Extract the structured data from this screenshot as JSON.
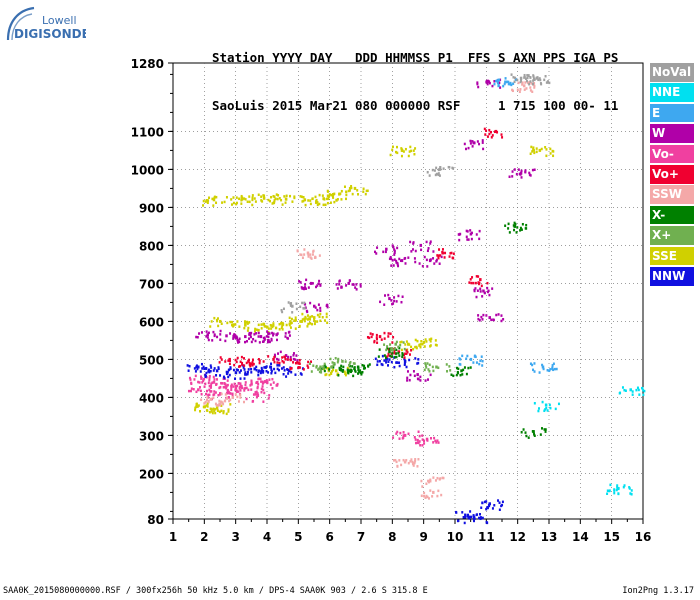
{
  "logo": {
    "line1": "Lowell",
    "line2": "DIGISONDE"
  },
  "header": {
    "line1": "Station YYYY DAY   DDD HHMMSS P1  FFS S AXN PPS IGA PS",
    "line2": "SaoLuis 2015 Mar21 080 000000 RSF     1 715 100 00- 11"
  },
  "legend": [
    {
      "label": "NoVal",
      "color": "#a0a0a0"
    },
    {
      "label": "NNE",
      "color": "#00e0f0"
    },
    {
      "label": "E",
      "color": "#3ea8f0"
    },
    {
      "label": "W",
      "color": "#b000a8"
    },
    {
      "label": "Vo-",
      "color": "#f040a0"
    },
    {
      "label": "Vo+",
      "color": "#f00030"
    },
    {
      "label": "SSW",
      "color": "#f4a8a8"
    },
    {
      "label": "X-",
      "color": "#008000"
    },
    {
      "label": "X+",
      "color": "#70b050"
    },
    {
      "label": "SSE",
      "color": "#d0d000"
    },
    {
      "label": "NNW",
      "color": "#1010e0"
    }
  ],
  "footer": {
    "left": "SAA0K_2015080000000.RSF / 300fx256h 50 kHz 5.0 km / DPS-4 SAA0K 903 / 2.6 S 315.8 E",
    "right": "Ion2Png 1.3.17"
  },
  "chart_data": {
    "type": "scatter",
    "xlabel": "",
    "ylabel": "",
    "xlim": [
      1,
      16
    ],
    "ylim": [
      80,
      1280
    ],
    "x_ticks": [
      "1",
      "2",
      "3",
      "4",
      "5",
      "6",
      "7",
      "8",
      "9",
      "10",
      "11",
      "12",
      "13",
      "14",
      "15",
      "16"
    ],
    "y_ticks": [
      "80",
      "200",
      "300",
      "400",
      "500",
      "600",
      "700",
      "800",
      "900",
      "1000",
      "1100",
      "1280"
    ],
    "grid": "dotted",
    "series": [
      {
        "name": "SSE",
        "points": [
          [
            2.3,
            920
          ],
          [
            3.2,
            922
          ],
          [
            3.9,
            924
          ],
          [
            4.6,
            922
          ],
          [
            5.2,
            920
          ],
          [
            5.8,
            923
          ],
          [
            6.3,
            935
          ],
          [
            6.8,
            950
          ],
          [
            2.5,
            600
          ],
          [
            3.3,
            590
          ],
          [
            4.0,
            585
          ],
          [
            4.5,
            592
          ],
          [
            5.1,
            600
          ],
          [
            5.5,
            610
          ],
          [
            2.0,
            375
          ],
          [
            2.4,
            372
          ],
          [
            6.2,
            470
          ],
          [
            8.5,
            540
          ],
          [
            9.0,
            545
          ],
          [
            8.3,
            1050
          ],
          [
            12.7,
            1050
          ]
        ]
      },
      {
        "name": "W",
        "points": [
          [
            2.1,
            565
          ],
          [
            2.7,
            562
          ],
          [
            3.3,
            560
          ],
          [
            3.8,
            560
          ],
          [
            4.3,
            565
          ],
          [
            5.4,
            700
          ],
          [
            5.5,
            640
          ],
          [
            6.6,
            700
          ],
          [
            7.8,
            790
          ],
          [
            7.9,
            660
          ],
          [
            8.3,
            760
          ],
          [
            8.9,
            800
          ],
          [
            9.2,
            760
          ],
          [
            10.5,
            830
          ],
          [
            10.6,
            1070
          ],
          [
            10.9,
            680
          ],
          [
            11.0,
            1230
          ],
          [
            11.1,
            610
          ],
          [
            12.1,
            990
          ],
          [
            8.8,
            460
          ],
          [
            4.6,
            510
          ]
        ]
      },
      {
        "name": "Vo-",
        "points": [
          [
            1.9,
            450
          ],
          [
            2.3,
            440
          ],
          [
            2.7,
            430
          ],
          [
            3.0,
            425
          ],
          [
            3.5,
            435
          ],
          [
            4.0,
            440
          ],
          [
            1.8,
            420
          ],
          [
            2.5,
            410
          ],
          [
            3.7,
            405
          ],
          [
            8.4,
            300
          ],
          [
            9.1,
            290
          ]
        ]
      },
      {
        "name": "NNW",
        "points": [
          [
            1.8,
            480
          ],
          [
            2.4,
            470
          ],
          [
            3.0,
            465
          ],
          [
            3.6,
            475
          ],
          [
            4.1,
            480
          ],
          [
            4.7,
            470
          ],
          [
            7.8,
            500
          ],
          [
            8.4,
            495
          ],
          [
            10.4,
            90
          ],
          [
            10.6,
            85
          ],
          [
            11.1,
            120
          ]
        ]
      },
      {
        "name": "Vo+",
        "points": [
          [
            2.8,
            500
          ],
          [
            3.4,
            495
          ],
          [
            4.2,
            500
          ],
          [
            5.0,
            490
          ],
          [
            7.6,
            560
          ],
          [
            8.2,
            520
          ],
          [
            9.6,
            780
          ],
          [
            10.8,
            710
          ],
          [
            11.3,
            1100
          ]
        ]
      },
      {
        "name": "X-",
        "points": [
          [
            6.1,
            480
          ],
          [
            6.6,
            470
          ],
          [
            6.9,
            480
          ],
          [
            7.9,
            520
          ],
          [
            10.2,
            470
          ],
          [
            11.9,
            850
          ],
          [
            12.5,
            310
          ]
        ]
      },
      {
        "name": "X+",
        "points": [
          [
            5.7,
            480
          ],
          [
            6.4,
            495
          ],
          [
            8.1,
            540
          ],
          [
            9.4,
            480
          ]
        ]
      },
      {
        "name": "SSW",
        "points": [
          [
            2.2,
            395
          ],
          [
            2.9,
            400
          ],
          [
            5.3,
            780
          ],
          [
            8.4,
            230
          ],
          [
            9.2,
            180
          ],
          [
            9.3,
            150
          ],
          [
            12.2,
            1220
          ]
        ]
      },
      {
        "name": "NNE",
        "points": [
          [
            15.2,
            160
          ],
          [
            15.6,
            420
          ],
          [
            12.9,
            380
          ]
        ]
      },
      {
        "name": "E",
        "points": [
          [
            12.8,
            480
          ],
          [
            11.6,
            1230
          ],
          [
            10.5,
            500
          ]
        ]
      },
      {
        "name": "NoVal",
        "points": [
          [
            12.1,
            1240
          ],
          [
            12.6,
            1240
          ],
          [
            4.8,
            640
          ],
          [
            9.5,
            1000
          ]
        ]
      }
    ]
  }
}
